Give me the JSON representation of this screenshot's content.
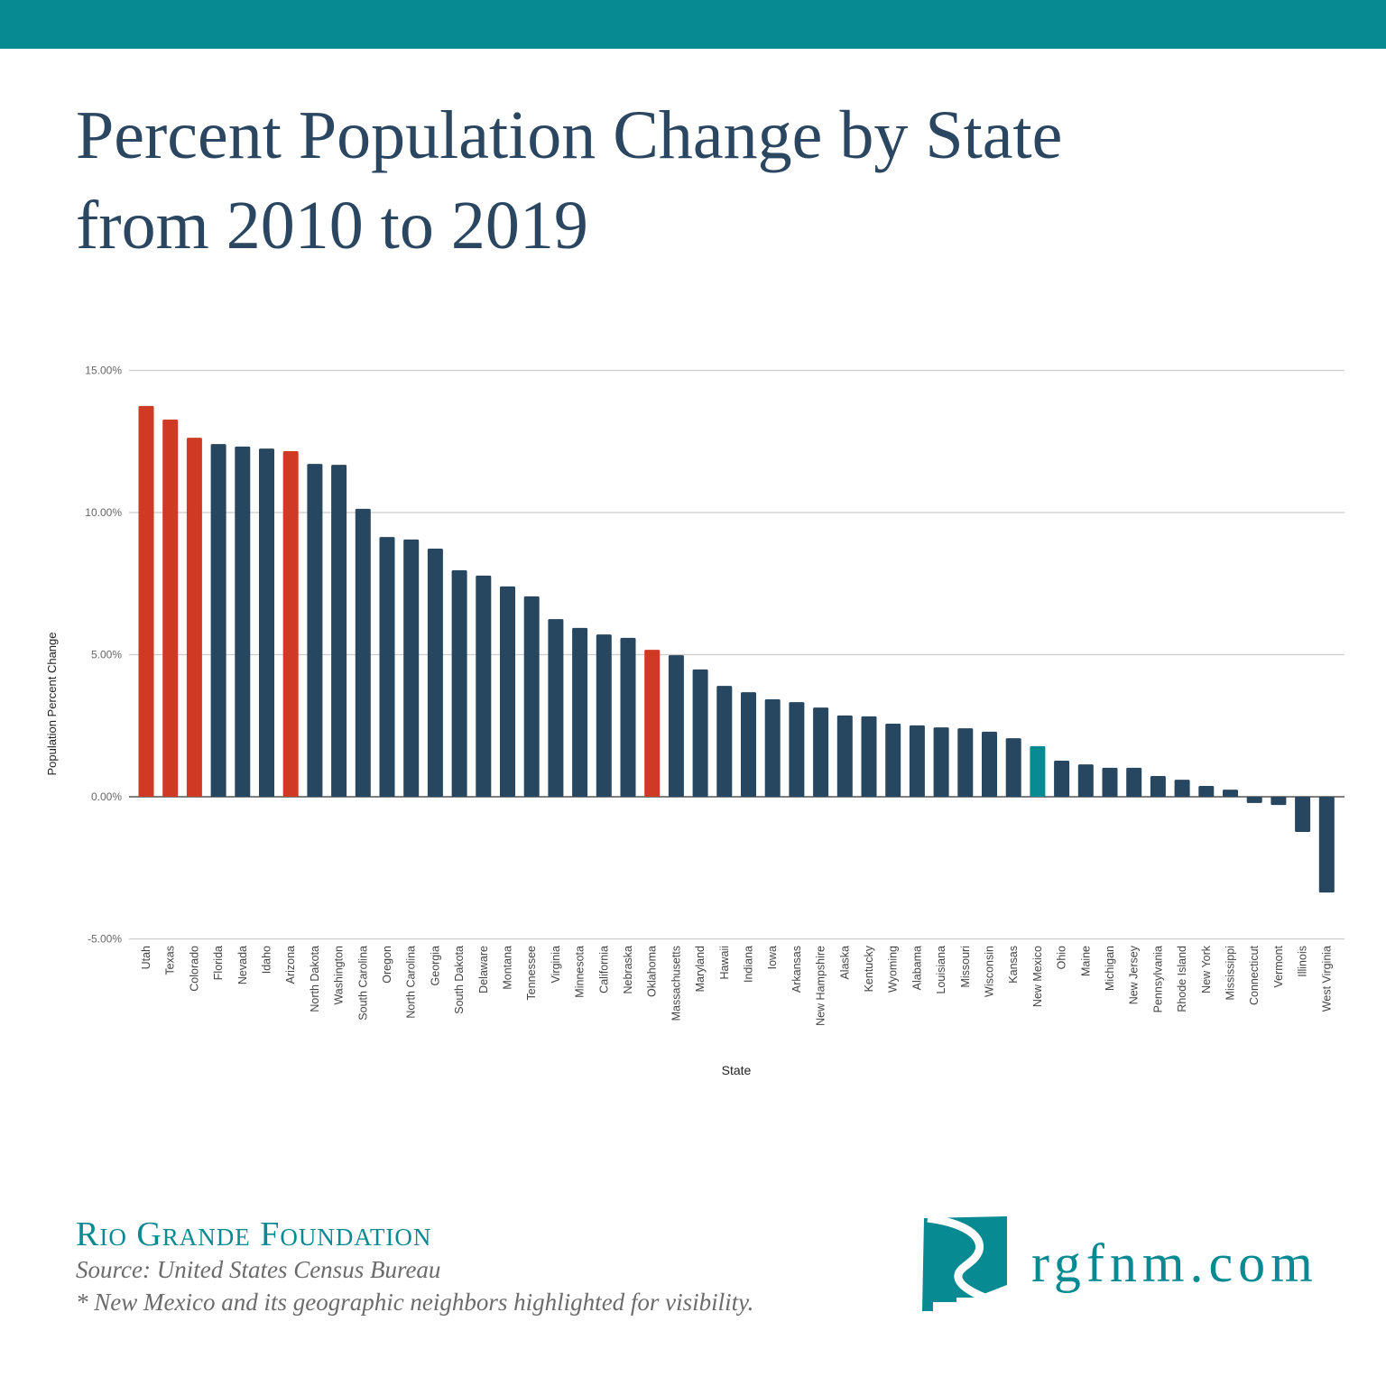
{
  "header": {
    "title_line1": "Percent Population Change by State",
    "title_line2": "from 2010 to 2019"
  },
  "colors": {
    "banner": "#088a93",
    "default_bar": "#27465f",
    "neighbor_bar": "#cf3a24",
    "new_mexico_bar": "#088a93",
    "title": "#2a4660"
  },
  "chart_data": {
    "type": "bar",
    "title": "",
    "xlabel": "State",
    "ylabel": "Population Percent Change",
    "ylim": [
      -5,
      15
    ],
    "yticks": [
      15,
      10,
      5,
      0,
      -5
    ],
    "ytick_labels": [
      "15.00%",
      "10.00%",
      "5.00%",
      "0.00%",
      "-5.00%"
    ],
    "grid": true,
    "categories": [
      "Utah",
      "Texas",
      "Colorado",
      "Florida",
      "Nevada",
      "Idaho",
      "Arizona",
      "North Dakota",
      "Washington",
      "South Carolina",
      "Oregon",
      "North Carolina",
      "Georgia",
      "South Dakota",
      "Delaware",
      "Montana",
      "Tennessee",
      "Virginia",
      "Minnesota",
      "California",
      "Nebraska",
      "Oklahoma",
      "Massachusetts",
      "Maryland",
      "Hawaii",
      "Indiana",
      "Iowa",
      "Arkansas",
      "New Hampshire",
      "Alaska",
      "Kentucky",
      "Wyoming",
      "Alabama",
      "Louisiana",
      "Missouri",
      "Wisconsin",
      "Kansas",
      "New Mexico",
      "Ohio",
      "Maine",
      "Michigan",
      "New Jersey",
      "Pennsylvania",
      "Rhode Island",
      "New York",
      "Mississippi",
      "Connecticut",
      "Vermont",
      "Illinois",
      "West Virginia"
    ],
    "values": [
      13.75,
      13.27,
      12.63,
      12.41,
      12.32,
      12.25,
      12.16,
      11.71,
      11.68,
      10.13,
      9.14,
      9.05,
      8.73,
      7.97,
      7.78,
      7.4,
      7.05,
      6.25,
      5.94,
      5.71,
      5.59,
      5.17,
      4.98,
      4.48,
      3.9,
      3.68,
      3.43,
      3.33,
      3.14,
      2.86,
      2.83,
      2.57,
      2.51,
      2.44,
      2.41,
      2.29,
      2.06,
      1.78,
      1.27,
      1.14,
      1.02,
      1.02,
      0.73,
      0.6,
      0.38,
      0.25,
      -0.22,
      -0.29,
      -1.24,
      -3.37
    ],
    "highlight_neighbors": [
      "Utah",
      "Texas",
      "Colorado",
      "Arizona",
      "Oklahoma"
    ],
    "highlight_primary": "New Mexico"
  },
  "footer": {
    "org": "Rio Grande Foundation",
    "source": "Source: United States Census Bureau",
    "note": "* New Mexico and its geographic neighbors highlighted for visibility.",
    "website": "rgfnm.com"
  }
}
